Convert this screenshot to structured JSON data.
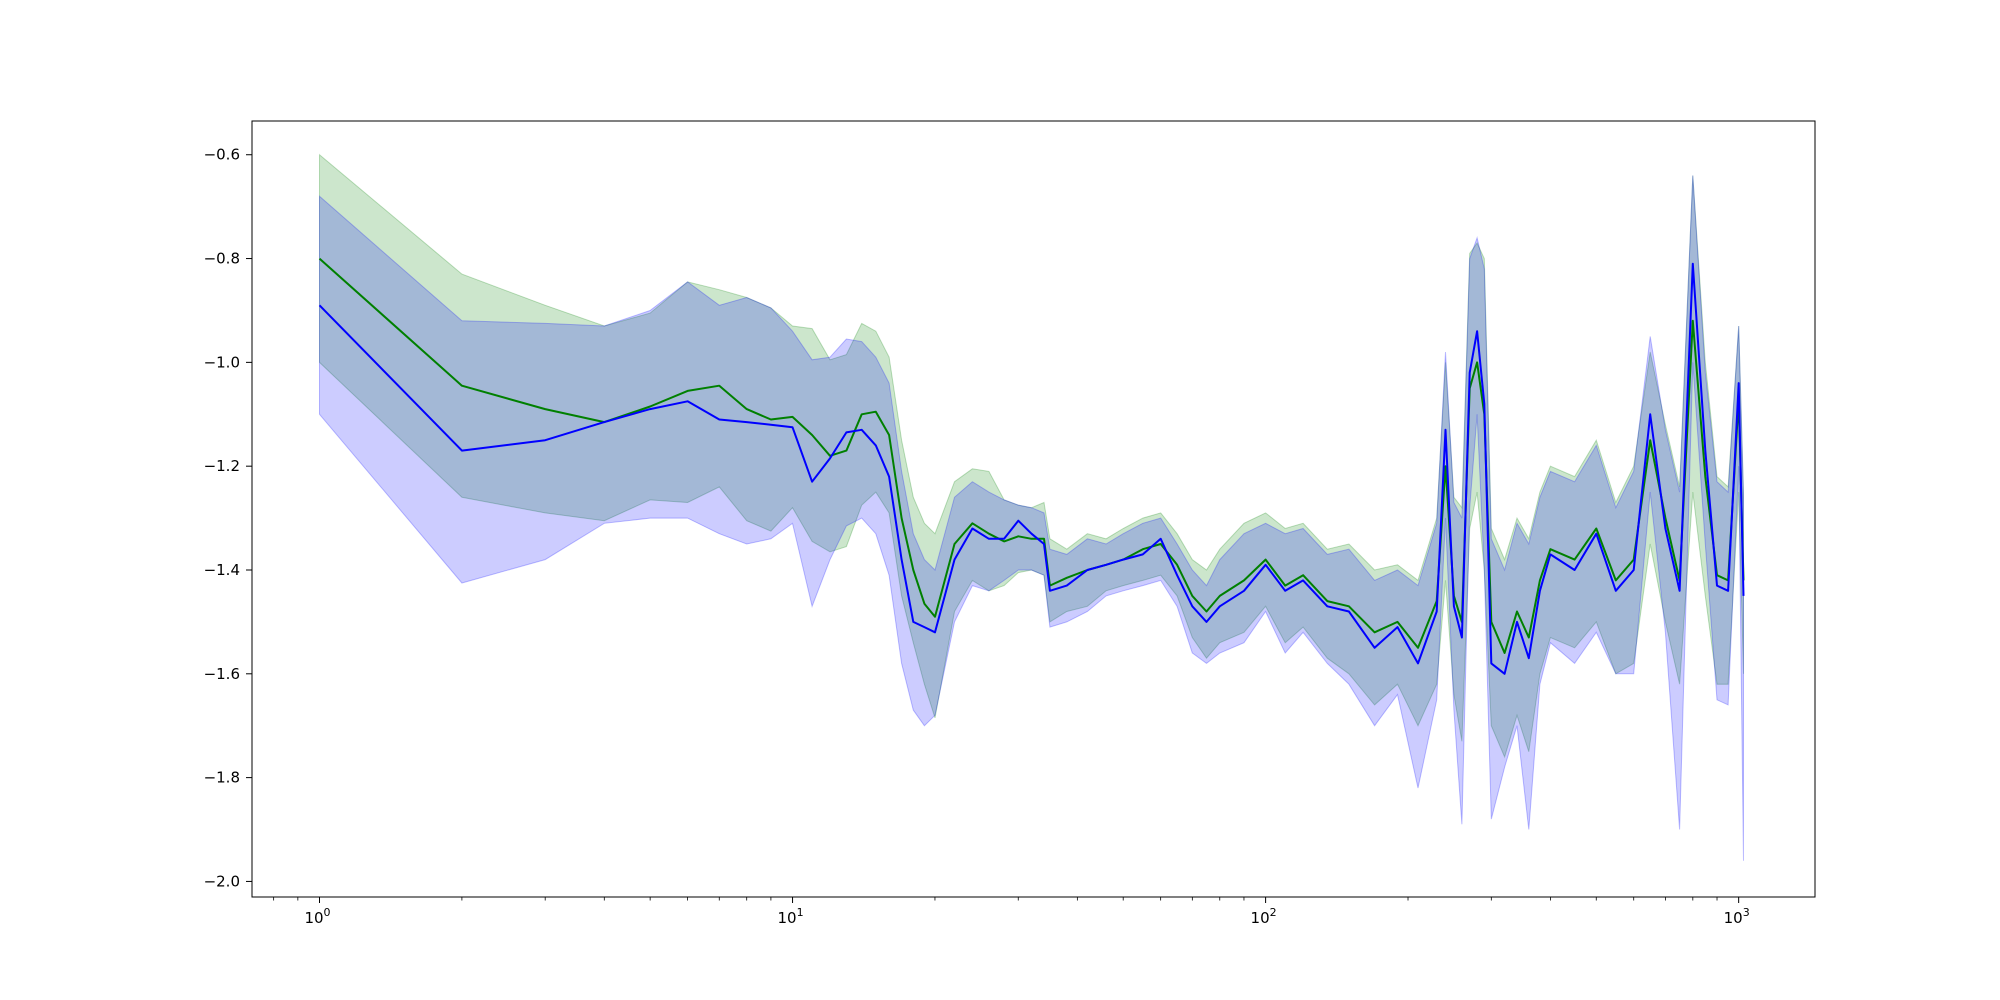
{
  "chart_data": {
    "type": "line",
    "title": "",
    "xlabel": "",
    "ylabel": "",
    "x_scale": "log",
    "xlim": [
      0.72,
      1450
    ],
    "ylim": [
      -2.03,
      -0.535
    ],
    "grid": false,
    "legend": "none",
    "x_ticks": [
      {
        "value": 1,
        "base": "10",
        "exp": "0"
      },
      {
        "value": 10,
        "base": "10",
        "exp": "1"
      },
      {
        "value": 100,
        "base": "10",
        "exp": "2"
      },
      {
        "value": 1000,
        "base": "10",
        "exp": "3"
      }
    ],
    "y_ticks": [
      {
        "value": -0.6,
        "label": "−0.6"
      },
      {
        "value": -0.8,
        "label": "−0.8"
      },
      {
        "value": -1.0,
        "label": "−1.0"
      },
      {
        "value": -1.2,
        "label": "−1.2"
      },
      {
        "value": -1.4,
        "label": "−1.4"
      },
      {
        "value": -1.6,
        "label": "−1.6"
      },
      {
        "value": -1.8,
        "label": "−1.8"
      },
      {
        "value": -2.0,
        "label": "−2.0"
      }
    ],
    "series": [
      {
        "color": "#008000",
        "band_color": "#008000",
        "band_opacity": 0.2,
        "x": [
          1,
          2,
          3,
          4,
          5,
          6,
          7,
          8,
          9,
          10,
          11,
          12,
          13,
          14,
          15,
          16,
          17,
          18,
          19,
          20,
          22,
          24,
          26,
          28,
          30,
          32,
          34,
          35,
          38,
          42,
          46,
          50,
          55,
          60,
          65,
          70,
          75,
          80,
          90,
          100,
          110,
          120,
          135,
          150,
          170,
          190,
          210,
          230,
          240,
          250,
          260,
          270,
          280,
          290,
          300,
          320,
          340,
          360,
          380,
          400,
          450,
          500,
          550,
          600,
          650,
          700,
          750,
          800,
          850,
          900,
          950,
          1000,
          1024
        ],
        "y": [
          -0.8,
          -1.045,
          -1.09,
          -1.115,
          -1.085,
          -1.055,
          -1.045,
          -1.09,
          -1.11,
          -1.105,
          -1.14,
          -1.18,
          -1.17,
          -1.1,
          -1.095,
          -1.14,
          -1.3,
          -1.4,
          -1.465,
          -1.49,
          -1.35,
          -1.31,
          -1.33,
          -1.345,
          -1.335,
          -1.34,
          -1.34,
          -1.43,
          -1.415,
          -1.4,
          -1.39,
          -1.38,
          -1.36,
          -1.35,
          -1.39,
          -1.45,
          -1.48,
          -1.45,
          -1.42,
          -1.38,
          -1.43,
          -1.41,
          -1.46,
          -1.47,
          -1.52,
          -1.5,
          -1.55,
          -1.46,
          -1.2,
          -1.45,
          -1.5,
          -1.05,
          -1.0,
          -1.1,
          -1.5,
          -1.56,
          -1.48,
          -1.53,
          -1.42,
          -1.36,
          -1.38,
          -1.32,
          -1.42,
          -1.38,
          -1.15,
          -1.3,
          -1.42,
          -0.92,
          -1.22,
          -1.41,
          -1.42,
          -1.07,
          -1.42
        ],
        "upper": [
          -0.6,
          -0.83,
          -0.89,
          -0.93,
          -0.905,
          -0.845,
          -0.86,
          -0.875,
          -0.895,
          -0.93,
          -0.935,
          -0.995,
          -0.985,
          -0.925,
          -0.94,
          -0.99,
          -1.15,
          -1.26,
          -1.31,
          -1.33,
          -1.23,
          -1.205,
          -1.21,
          -1.265,
          -1.275,
          -1.28,
          -1.27,
          -1.34,
          -1.36,
          -1.33,
          -1.34,
          -1.32,
          -1.3,
          -1.29,
          -1.33,
          -1.38,
          -1.4,
          -1.36,
          -1.31,
          -1.29,
          -1.32,
          -1.31,
          -1.36,
          -1.35,
          -1.4,
          -1.39,
          -1.42,
          -1.3,
          -1.0,
          -1.26,
          -1.28,
          -0.79,
          -0.77,
          -0.8,
          -1.32,
          -1.38,
          -1.3,
          -1.34,
          -1.25,
          -1.2,
          -1.22,
          -1.15,
          -1.27,
          -1.2,
          -0.98,
          -1.12,
          -1.24,
          -0.64,
          -1.0,
          -1.22,
          -1.24,
          -0.93,
          -1.25
        ],
        "lower": [
          -1.0,
          -1.26,
          -1.29,
          -1.305,
          -1.265,
          -1.27,
          -1.24,
          -1.305,
          -1.325,
          -1.28,
          -1.345,
          -1.365,
          -1.355,
          -1.275,
          -1.25,
          -1.29,
          -1.45,
          -1.54,
          -1.62,
          -1.685,
          -1.48,
          -1.42,
          -1.44,
          -1.43,
          -1.405,
          -1.4,
          -1.41,
          -1.5,
          -1.48,
          -1.47,
          -1.44,
          -1.43,
          -1.42,
          -1.41,
          -1.45,
          -1.53,
          -1.57,
          -1.54,
          -1.52,
          -1.47,
          -1.54,
          -1.51,
          -1.57,
          -1.6,
          -1.66,
          -1.62,
          -1.7,
          -1.62,
          -1.42,
          -1.64,
          -1.73,
          -1.32,
          -1.25,
          -1.4,
          -1.7,
          -1.76,
          -1.68,
          -1.75,
          -1.6,
          -1.53,
          -1.55,
          -1.5,
          -1.6,
          -1.58,
          -1.35,
          -1.5,
          -1.62,
          -1.25,
          -1.45,
          -1.62,
          -1.62,
          -1.25,
          -1.6
        ]
      },
      {
        "color": "#0000ff",
        "band_color": "#0000ff",
        "band_opacity": 0.2,
        "x": [
          1,
          2,
          3,
          4,
          5,
          6,
          7,
          8,
          9,
          10,
          11,
          12,
          13,
          14,
          15,
          16,
          17,
          18,
          19,
          20,
          22,
          24,
          26,
          28,
          30,
          32,
          34,
          35,
          38,
          42,
          46,
          50,
          55,
          60,
          65,
          70,
          75,
          80,
          90,
          100,
          110,
          120,
          135,
          150,
          170,
          190,
          210,
          230,
          240,
          250,
          260,
          270,
          280,
          290,
          300,
          320,
          340,
          360,
          380,
          400,
          450,
          500,
          550,
          600,
          650,
          700,
          750,
          800,
          850,
          900,
          950,
          1000,
          1024
        ],
        "y": [
          -0.89,
          -1.17,
          -1.15,
          -1.115,
          -1.09,
          -1.075,
          -1.11,
          -1.115,
          -1.12,
          -1.125,
          -1.23,
          -1.185,
          -1.135,
          -1.13,
          -1.16,
          -1.22,
          -1.38,
          -1.5,
          -1.51,
          -1.52,
          -1.38,
          -1.32,
          -1.34,
          -1.34,
          -1.305,
          -1.33,
          -1.35,
          -1.44,
          -1.43,
          -1.4,
          -1.39,
          -1.38,
          -1.37,
          -1.34,
          -1.41,
          -1.47,
          -1.5,
          -1.47,
          -1.44,
          -1.39,
          -1.44,
          -1.42,
          -1.47,
          -1.48,
          -1.55,
          -1.51,
          -1.58,
          -1.48,
          -1.13,
          -1.47,
          -1.53,
          -1.02,
          -0.94,
          -1.08,
          -1.58,
          -1.6,
          -1.5,
          -1.57,
          -1.44,
          -1.37,
          -1.4,
          -1.33,
          -1.44,
          -1.4,
          -1.1,
          -1.32,
          -1.44,
          -0.81,
          -1.17,
          -1.43,
          -1.44,
          -1.04,
          -1.45
        ],
        "upper": [
          -0.68,
          -0.92,
          -0.925,
          -0.93,
          -0.9,
          -0.845,
          -0.89,
          -0.875,
          -0.895,
          -0.94,
          -0.995,
          -0.99,
          -0.955,
          -0.96,
          -0.99,
          -1.04,
          -1.21,
          -1.33,
          -1.38,
          -1.4,
          -1.26,
          -1.23,
          -1.25,
          -1.265,
          -1.275,
          -1.28,
          -1.29,
          -1.36,
          -1.37,
          -1.34,
          -1.35,
          -1.33,
          -1.31,
          -1.3,
          -1.35,
          -1.4,
          -1.43,
          -1.38,
          -1.33,
          -1.31,
          -1.33,
          -1.32,
          -1.37,
          -1.36,
          -1.42,
          -1.4,
          -1.43,
          -1.31,
          -0.98,
          -1.27,
          -1.3,
          -0.8,
          -0.76,
          -0.82,
          -1.34,
          -1.4,
          -1.31,
          -1.35,
          -1.26,
          -1.21,
          -1.23,
          -1.16,
          -1.28,
          -1.21,
          -0.95,
          -1.13,
          -1.25,
          -0.64,
          -1.02,
          -1.23,
          -1.25,
          -0.93,
          -1.26
        ],
        "lower": [
          -1.1,
          -1.425,
          -1.38,
          -1.31,
          -1.3,
          -1.3,
          -1.33,
          -1.35,
          -1.34,
          -1.31,
          -1.47,
          -1.38,
          -1.315,
          -1.3,
          -1.33,
          -1.41,
          -1.58,
          -1.67,
          -1.7,
          -1.68,
          -1.5,
          -1.43,
          -1.44,
          -1.42,
          -1.4,
          -1.4,
          -1.41,
          -1.51,
          -1.5,
          -1.48,
          -1.45,
          -1.44,
          -1.43,
          -1.42,
          -1.47,
          -1.56,
          -1.58,
          -1.56,
          -1.54,
          -1.48,
          -1.56,
          -1.52,
          -1.58,
          -1.62,
          -1.7,
          -1.64,
          -1.82,
          -1.65,
          -1.3,
          -1.67,
          -1.89,
          -1.28,
          -1.1,
          -1.4,
          -1.88,
          -1.78,
          -1.7,
          -1.9,
          -1.62,
          -1.54,
          -1.58,
          -1.52,
          -1.6,
          -1.6,
          -1.25,
          -1.52,
          -1.9,
          -1.0,
          -1.35,
          -1.65,
          -1.66,
          -1.2,
          -1.96
        ]
      }
    ]
  }
}
